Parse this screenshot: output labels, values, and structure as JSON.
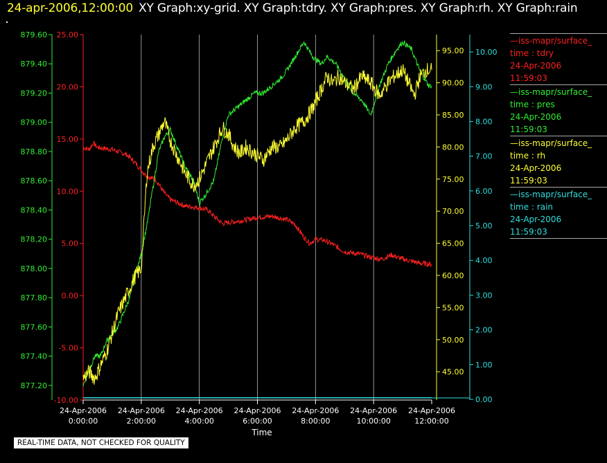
{
  "header": {
    "timestamp": "24-apr-2006,12:00:00",
    "graph_titles": "XY Graph:xy-grid.  XY Graph:tdry.  XY Graph:pres.  XY Graph:rh.  XY Graph:rain"
  },
  "legend": [
    {
      "source": "—iss-mapr/surface_",
      "variable": "time : tdry",
      "date": "24-Apr-2006",
      "time": "11:59:03",
      "color": "#ff2020"
    },
    {
      "source": "—iss-mapr/surface_",
      "variable": "time : pres",
      "date": "24-Apr-2006",
      "time": "11:59:03",
      "color": "#33ee33"
    },
    {
      "source": "—iss-mapr/surface_",
      "variable": "time : rh",
      "date": "24-Apr-2006",
      "time": "11:59:03",
      "color": "#ffff33"
    },
    {
      "source": "—iss-mapr/surface_",
      "variable": "time : rain",
      "date": "24-Apr-2006",
      "time": "11:59:03",
      "color": "#33dddd"
    }
  ],
  "disclaimer": "REAL-TIME DATA, NOT CHECKED FOR QUALITY",
  "chart_data": {
    "type": "line",
    "xlabel": "Time",
    "x_ticks": [
      {
        "date": "24-Apr-2006",
        "time": "0:00:00",
        "hour": 0
      },
      {
        "date": "24-Apr-2006",
        "time": "2:00:00",
        "hour": 2
      },
      {
        "date": "24-Apr-2006",
        "time": "4:00:00",
        "hour": 4
      },
      {
        "date": "24-Apr-2006",
        "time": "6:00:00",
        "hour": 6
      },
      {
        "date": "24-Apr-2006",
        "time": "8:00:00",
        "hour": 8
      },
      {
        "date": "24-Apr-2006",
        "time": "10:00:00",
        "hour": 10
      },
      {
        "date": "24-Apr-2006",
        "time": "12:00:00",
        "hour": 12
      }
    ],
    "xlim": [
      0,
      12
    ],
    "grid": "vertical",
    "axes": [
      {
        "id": "pres",
        "side": "left-outer",
        "color": "#33ee33",
        "ylim": [
          877.1,
          879.6
        ],
        "ticks": [
          "877.20",
          "877.40",
          "877.60",
          "877.80",
          "878.00",
          "878.20",
          "878.40",
          "878.60",
          "878.80",
          "879.00",
          "879.20",
          "879.40",
          "879.60"
        ]
      },
      {
        "id": "tdry",
        "side": "left-inner",
        "color": "#ff2020",
        "ylim": [
          -10,
          25
        ],
        "ticks": [
          "-10.00",
          "-5.00",
          "0.00",
          "5.00",
          "10.00",
          "15.00",
          "20.00",
          "25.00"
        ]
      },
      {
        "id": "rh",
        "side": "right-inner",
        "color": "#ffff33",
        "ylim": [
          40.6,
          97.5
        ],
        "ticks": [
          "45.00",
          "50.00",
          "55.00",
          "60.00",
          "65.00",
          "70.00",
          "75.00",
          "80.00",
          "85.00",
          "90.00",
          "95.00"
        ]
      },
      {
        "id": "rain",
        "side": "right-outer",
        "color": "#33dddd",
        "ylim": [
          -0.02,
          10.5
        ],
        "ticks": [
          "0.00",
          "1.00",
          "2.00",
          "3.00",
          "4.00",
          "5.00",
          "6.00",
          "7.00",
          "8.00",
          "9.00",
          "10.00"
        ]
      }
    ],
    "series": [
      {
        "axis": "tdry",
        "color": "#ff2020",
        "x": [
          0,
          0.2,
          0.35,
          0.5,
          1.0,
          1.5,
          1.8,
          2.1,
          2.3,
          2.5,
          2.8,
          3.0,
          3.5,
          4.0,
          4.3,
          4.5,
          4.8,
          5.0,
          5.5,
          6.0,
          6.5,
          7.0,
          7.3,
          7.6,
          7.8,
          8.0,
          8.3,
          8.6,
          9.0,
          9.5,
          10.0,
          10.3,
          10.6,
          11.0,
          11.3,
          11.6,
          12.0
        ],
        "y": [
          14.2,
          14.0,
          14.6,
          14.2,
          14.0,
          13.5,
          12.7,
          11.7,
          11.3,
          11.1,
          9.8,
          9.2,
          8.6,
          8.4,
          8.2,
          7.6,
          6.9,
          7.0,
          7.2,
          7.5,
          7.6,
          7.3,
          6.8,
          5.6,
          5.0,
          5.4,
          5.3,
          4.9,
          4.2,
          4.0,
          3.6,
          3.5,
          3.9,
          3.5,
          3.3,
          3.1,
          3.0
        ]
      },
      {
        "axis": "pres",
        "color": "#33ee33",
        "x": [
          0,
          0.2,
          0.4,
          0.6,
          0.8,
          1.0,
          1.2,
          1.4,
          1.6,
          1.8,
          2.0,
          2.2,
          2.4,
          2.6,
          2.8,
          3.0,
          3.2,
          3.5,
          3.8,
          4.0,
          4.2,
          4.5,
          4.8,
          5.0,
          5.3,
          5.6,
          5.9,
          6.2,
          6.5,
          6.8,
          7.0,
          7.3,
          7.6,
          7.9,
          8.2,
          8.4,
          8.7,
          9.0,
          9.3,
          9.6,
          9.9,
          10.2,
          10.5,
          10.8,
          11.0,
          11.3,
          11.6,
          11.9,
          12.0
        ],
        "y": [
          877.2,
          877.3,
          877.4,
          877.4,
          877.5,
          877.55,
          877.6,
          877.7,
          877.8,
          877.95,
          878.1,
          878.3,
          878.55,
          878.8,
          878.9,
          878.95,
          878.85,
          878.7,
          878.6,
          878.45,
          878.5,
          878.6,
          878.9,
          879.05,
          879.1,
          879.15,
          879.2,
          879.2,
          879.25,
          879.3,
          879.35,
          879.45,
          879.55,
          879.45,
          879.4,
          879.45,
          879.4,
          879.3,
          879.2,
          879.15,
          879.05,
          879.25,
          879.4,
          879.5,
          879.55,
          879.5,
          879.35,
          879.25,
          879.25
        ]
      },
      {
        "axis": "rh",
        "color": "#ffff33",
        "x": [
          0,
          0.2,
          0.4,
          0.6,
          0.8,
          1.0,
          1.2,
          1.4,
          1.6,
          1.8,
          2.0,
          2.2,
          2.4,
          2.6,
          2.8,
          3.0,
          3.2,
          3.5,
          3.8,
          4.0,
          4.3,
          4.6,
          4.8,
          5.0,
          5.2,
          5.4,
          5.6,
          5.9,
          6.2,
          6.5,
          6.8,
          7.0,
          7.3,
          7.6,
          7.9,
          8.2,
          8.4,
          8.6,
          8.8,
          9.0,
          9.3,
          9.6,
          9.9,
          10.2,
          10.5,
          10.7,
          11.0,
          11.2,
          11.4,
          11.6,
          11.8,
          12.0
        ],
        "y": [
          44,
          45,
          44,
          46,
          48,
          51,
          54,
          56,
          58,
          60,
          61,
          76,
          80,
          82,
          84,
          81,
          79,
          76,
          74,
          75,
          78,
          81,
          83,
          82,
          80,
          79,
          80,
          79,
          78,
          80,
          80,
          81,
          83,
          84,
          86,
          89,
          91,
          90,
          91,
          90,
          89,
          91,
          90,
          88,
          90,
          91,
          92,
          90,
          88,
          91,
          92,
          92
        ]
      },
      {
        "axis": "rain",
        "color": "#33dddd",
        "x": [
          0,
          12
        ],
        "y": [
          0.05,
          0.05
        ]
      }
    ]
  }
}
